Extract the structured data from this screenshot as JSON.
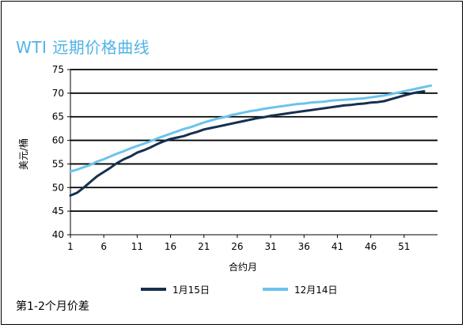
{
  "title": "WTI 远期价格曲线",
  "footnote": "第1-2个月价差",
  "colors": {
    "series1": "#16304f",
    "series2": "#6cc3ec",
    "title": "#4fb3e8",
    "grid": "#000000"
  },
  "chart_data": {
    "type": "line",
    "title": "WTI 远期价格曲线",
    "xlabel": "合约月",
    "ylabel": "美元/桶",
    "xlim": [
      1,
      56
    ],
    "ylim": [
      40,
      75
    ],
    "xticks": [
      1,
      6,
      11,
      16,
      21,
      26,
      31,
      36,
      41,
      46,
      51
    ],
    "yticks": [
      40,
      45,
      50,
      55,
      60,
      65,
      70,
      75
    ],
    "grid": "horizontal",
    "legend": "bottom",
    "series": [
      {
        "name": "1月15日",
        "x": [
          1,
          2,
          3,
          4,
          5,
          6,
          7,
          8,
          9,
          10,
          11,
          12,
          13,
          14,
          15,
          16,
          17,
          18,
          19,
          20,
          21,
          22,
          23,
          24,
          25,
          26,
          27,
          28,
          29,
          30,
          31,
          32,
          33,
          34,
          35,
          36,
          37,
          38,
          39,
          40,
          41,
          42,
          43,
          44,
          45,
          46,
          47,
          48,
          49,
          50,
          51,
          52,
          53,
          54
        ],
        "values": [
          48.3,
          48.9,
          50.0,
          51.2,
          52.4,
          53.3,
          54.2,
          55.2,
          56.0,
          56.6,
          57.4,
          57.9,
          58.5,
          59.2,
          59.8,
          60.3,
          60.6,
          60.9,
          61.4,
          61.8,
          62.3,
          62.6,
          62.9,
          63.2,
          63.5,
          63.8,
          64.1,
          64.4,
          64.7,
          64.9,
          65.2,
          65.4,
          65.6,
          65.8,
          66.0,
          66.2,
          66.4,
          66.6,
          66.8,
          67.0,
          67.2,
          67.4,
          67.5,
          67.7,
          67.8,
          68.0,
          68.1,
          68.3,
          68.7,
          69.1,
          69.5,
          69.9,
          70.2,
          70.4
        ]
      },
      {
        "name": "12月14日",
        "x": [
          1,
          2,
          3,
          4,
          5,
          6,
          7,
          8,
          9,
          10,
          11,
          12,
          13,
          14,
          15,
          16,
          17,
          18,
          19,
          20,
          21,
          22,
          23,
          24,
          25,
          26,
          27,
          28,
          29,
          30,
          31,
          32,
          33,
          34,
          35,
          36,
          37,
          38,
          39,
          40,
          41,
          42,
          43,
          44,
          45,
          46,
          47,
          48,
          49,
          50,
          51,
          52,
          53,
          54,
          55
        ],
        "values": [
          53.4,
          53.8,
          54.3,
          54.8,
          55.5,
          56.0,
          56.6,
          57.2,
          57.7,
          58.3,
          58.8,
          59.3,
          59.8,
          60.4,
          60.9,
          61.4,
          61.9,
          62.4,
          62.8,
          63.3,
          63.8,
          64.2,
          64.6,
          64.9,
          65.3,
          65.6,
          65.9,
          66.2,
          66.4,
          66.7,
          66.9,
          67.1,
          67.3,
          67.5,
          67.7,
          67.8,
          68.0,
          68.1,
          68.2,
          68.4,
          68.5,
          68.6,
          68.7,
          68.8,
          68.9,
          69.1,
          69.3,
          69.5,
          69.8,
          70.1,
          70.4,
          70.7,
          71.0,
          71.3,
          71.6
        ]
      }
    ]
  }
}
